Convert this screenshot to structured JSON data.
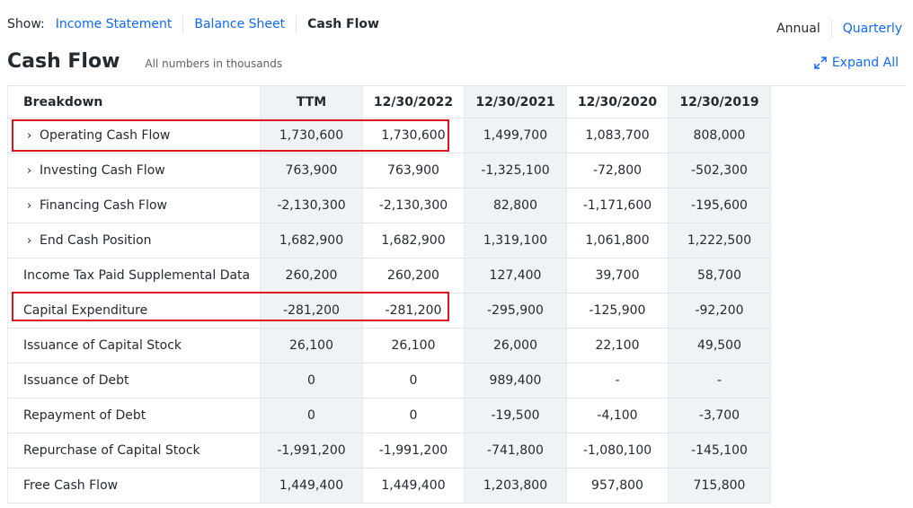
{
  "nav": {
    "show_label": "Show:",
    "tabs": [
      {
        "label": "Income Statement",
        "active": false
      },
      {
        "label": "Balance Sheet",
        "active": false
      },
      {
        "label": "Cash Flow",
        "active": true
      }
    ]
  },
  "period": {
    "annual": "Annual",
    "quarterly": "Quarterly"
  },
  "header": {
    "title": "Cash Flow",
    "note": "All numbers in thousands",
    "expand_all": "Expand All"
  },
  "table": {
    "columns": [
      "Breakdown",
      "TTM",
      "12/30/2022",
      "12/30/2021",
      "12/30/2020",
      "12/30/2019"
    ],
    "rows": [
      {
        "label": "Operating Cash Flow",
        "expandable": true,
        "values": [
          "1,730,600",
          "1,730,600",
          "1,499,700",
          "1,083,700",
          "808,000"
        ]
      },
      {
        "label": "Investing Cash Flow",
        "expandable": true,
        "values": [
          "763,900",
          "763,900",
          "-1,325,100",
          "-72,800",
          "-502,300"
        ]
      },
      {
        "label": "Financing Cash Flow",
        "expandable": true,
        "values": [
          "-2,130,300",
          "-2,130,300",
          "82,800",
          "-1,171,600",
          "-195,600"
        ]
      },
      {
        "label": "End Cash Position",
        "expandable": true,
        "values": [
          "1,682,900",
          "1,682,900",
          "1,319,100",
          "1,061,800",
          "1,222,500"
        ]
      },
      {
        "label": "Income Tax Paid Supplemental Data",
        "expandable": false,
        "values": [
          "260,200",
          "260,200",
          "127,400",
          "39,700",
          "58,700"
        ]
      },
      {
        "label": "Capital Expenditure",
        "expandable": false,
        "values": [
          "-281,200",
          "-281,200",
          "-295,900",
          "-125,900",
          "-92,200"
        ]
      },
      {
        "label": "Issuance of Capital Stock",
        "expandable": false,
        "values": [
          "26,100",
          "26,100",
          "26,000",
          "22,100",
          "49,500"
        ]
      },
      {
        "label": "Issuance of Debt",
        "expandable": false,
        "values": [
          "0",
          "0",
          "989,400",
          "-",
          "-"
        ]
      },
      {
        "label": "Repayment of Debt",
        "expandable": false,
        "values": [
          "0",
          "0",
          "-19,500",
          "-4,100",
          "-3,700"
        ]
      },
      {
        "label": "Repurchase of Capital Stock",
        "expandable": false,
        "values": [
          "-1,991,200",
          "-1,991,200",
          "-741,800",
          "-1,080,100",
          "-145,100"
        ]
      },
      {
        "label": "Free Cash Flow",
        "expandable": false,
        "values": [
          "1,449,400",
          "1,449,400",
          "1,203,800",
          "957,800",
          "715,800"
        ]
      }
    ],
    "chevron": "›"
  },
  "highlight_color": "#e0141e",
  "link_color": "#0f69ff"
}
